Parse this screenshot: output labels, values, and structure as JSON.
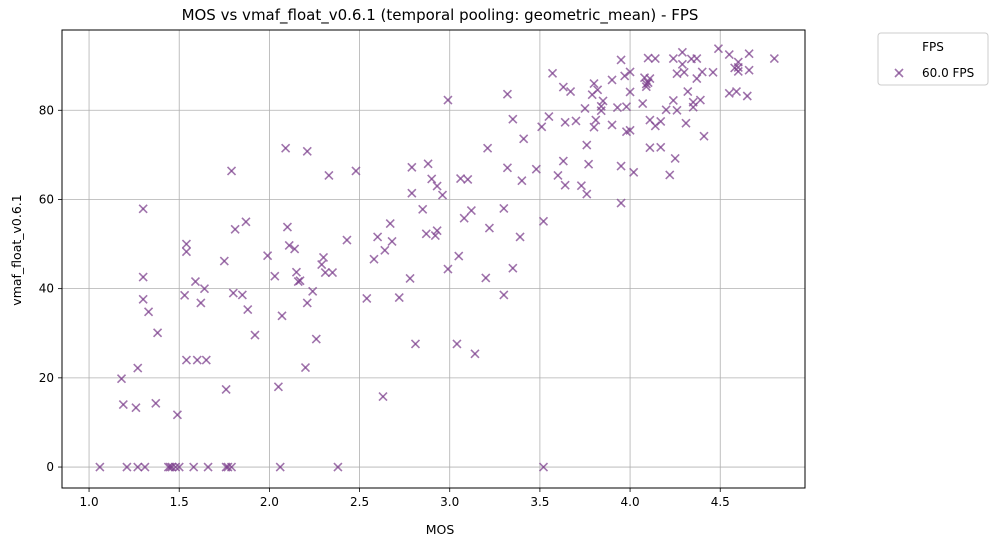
{
  "chart_data": {
    "type": "scatter",
    "title": "MOS vs vmaf_float_v0.6.1 (temporal pooling: geometric_mean) - FPS",
    "xlabel": "MOS",
    "ylabel": "vmaf_float_v0.6.1",
    "xlim": [
      0.85,
      4.97
    ],
    "ylim": [
      -4.7,
      98
    ],
    "x_ticks": [
      "1.0",
      "1.5",
      "2.0",
      "2.5",
      "3.0",
      "3.5",
      "4.0",
      "4.5"
    ],
    "y_ticks": [
      "0",
      "20",
      "40",
      "60",
      "80"
    ],
    "grid": true,
    "legend": {
      "title": "FPS",
      "placement": "outside-top-right"
    },
    "series": [
      {
        "name": "60.0 FPS",
        "marker": "x",
        "color": "#7b3f8c",
        "points": [
          [
            1.06,
            0
          ],
          [
            1.21,
            0
          ],
          [
            1.27,
            0
          ],
          [
            1.31,
            0
          ],
          [
            1.44,
            0
          ],
          [
            1.45,
            0
          ],
          [
            1.46,
            0
          ],
          [
            1.48,
            0
          ],
          [
            1.5,
            0
          ],
          [
            1.58,
            0
          ],
          [
            1.66,
            0
          ],
          [
            1.76,
            0
          ],
          [
            1.77,
            0
          ],
          [
            1.79,
            0
          ],
          [
            2.06,
            0
          ],
          [
            2.38,
            0
          ],
          [
            3.52,
            0
          ],
          [
            1.18,
            19.8
          ],
          [
            1.19,
            14
          ],
          [
            1.26,
            13.3
          ],
          [
            1.27,
            22.2
          ],
          [
            1.3,
            57.9
          ],
          [
            1.3,
            42.6
          ],
          [
            1.3,
            37.6
          ],
          [
            1.33,
            34.8
          ],
          [
            1.37,
            14.3
          ],
          [
            1.38,
            30.1
          ],
          [
            1.49,
            11.7
          ],
          [
            1.53,
            38.5
          ],
          [
            1.54,
            24
          ],
          [
            1.54,
            50
          ],
          [
            1.54,
            48.3
          ],
          [
            1.59,
            41.6
          ],
          [
            1.6,
            24
          ],
          [
            1.62,
            36.8
          ],
          [
            1.64,
            40
          ],
          [
            1.65,
            24
          ],
          [
            1.75,
            46.2
          ],
          [
            1.76,
            17.4
          ],
          [
            1.79,
            66.4
          ],
          [
            1.8,
            39
          ],
          [
            1.81,
            53.3
          ],
          [
            1.85,
            38.6
          ],
          [
            1.87,
            55
          ],
          [
            1.88,
            35.3
          ],
          [
            1.92,
            29.6
          ],
          [
            1.99,
            47.4
          ],
          [
            2.03,
            42.8
          ],
          [
            2.05,
            18
          ],
          [
            2.07,
            33.9
          ],
          [
            2.09,
            71.5
          ],
          [
            2.1,
            53.8
          ],
          [
            2.11,
            49.7
          ],
          [
            2.14,
            48.9
          ],
          [
            2.15,
            43.7
          ],
          [
            2.16,
            41.6
          ],
          [
            2.17,
            41.8
          ],
          [
            2.21,
            70.8
          ],
          [
            2.21,
            36.8
          ],
          [
            2.2,
            22.3
          ],
          [
            2.24,
            39.4
          ],
          [
            2.26,
            28.7
          ],
          [
            2.29,
            45.4
          ],
          [
            2.3,
            47
          ],
          [
            2.31,
            43.6
          ],
          [
            2.33,
            65.4
          ],
          [
            2.35,
            43.6
          ],
          [
            2.43,
            50.9
          ],
          [
            2.48,
            66.4
          ],
          [
            2.54,
            37.8
          ],
          [
            2.58,
            46.6
          ],
          [
            2.6,
            51.6
          ],
          [
            2.63,
            15.8
          ],
          [
            2.64,
            48.6
          ],
          [
            2.68,
            50.6
          ],
          [
            2.67,
            54.6
          ],
          [
            2.72,
            38
          ],
          [
            2.78,
            42.3
          ],
          [
            2.79,
            67.2
          ],
          [
            2.79,
            61.4
          ],
          [
            2.81,
            27.6
          ],
          [
            2.85,
            57.8
          ],
          [
            2.87,
            52.3
          ],
          [
            2.88,
            68
          ],
          [
            2.9,
            64.6
          ],
          [
            2.92,
            51.9
          ],
          [
            2.93,
            63
          ],
          [
            2.93,
            53
          ],
          [
            2.96,
            61
          ],
          [
            2.99,
            82.3
          ],
          [
            2.99,
            44.4
          ],
          [
            3.04,
            27.6
          ],
          [
            3.05,
            47.3
          ],
          [
            3.06,
            64.7
          ],
          [
            3.08,
            55.8
          ],
          [
            3.1,
            64.5
          ],
          [
            3.12,
            57.5
          ],
          [
            3.14,
            25.4
          ],
          [
            3.2,
            42.4
          ],
          [
            3.21,
            71.5
          ],
          [
            3.22,
            53.6
          ],
          [
            3.3,
            38.6
          ],
          [
            3.3,
            58
          ],
          [
            3.32,
            83.6
          ],
          [
            3.32,
            67.1
          ],
          [
            3.35,
            44.6
          ],
          [
            3.35,
            78
          ],
          [
            3.39,
            51.6
          ],
          [
            3.4,
            64.2
          ],
          [
            3.41,
            73.6
          ],
          [
            3.48,
            66.8
          ],
          [
            3.51,
            76.3
          ],
          [
            3.52,
            55.1
          ],
          [
            3.55,
            78.6
          ],
          [
            3.57,
            88.3
          ],
          [
            3.6,
            65.4
          ],
          [
            3.63,
            68.6
          ],
          [
            3.63,
            85.2
          ],
          [
            3.64,
            63.2
          ],
          [
            3.64,
            77.3
          ],
          [
            3.67,
            84.2
          ],
          [
            3.7,
            77.6
          ],
          [
            3.73,
            63.1
          ],
          [
            3.75,
            80.4
          ],
          [
            3.76,
            61.2
          ],
          [
            3.76,
            72.2
          ],
          [
            3.77,
            67.9
          ],
          [
            3.79,
            83.5
          ],
          [
            3.8,
            86
          ],
          [
            3.8,
            76.2
          ],
          [
            3.81,
            77.8
          ],
          [
            3.82,
            84.6
          ],
          [
            3.84,
            80.9
          ],
          [
            3.84,
            79.9
          ],
          [
            3.85,
            82.1
          ],
          [
            3.9,
            86.8
          ],
          [
            3.9,
            76.7
          ],
          [
            3.93,
            80.6
          ],
          [
            3.95,
            91.3
          ],
          [
            3.95,
            67.5
          ],
          [
            3.95,
            59.2
          ],
          [
            3.97,
            87.7
          ],
          [
            3.98,
            75.2
          ],
          [
            3.98,
            80.8
          ],
          [
            4.0,
            88.6
          ],
          [
            4.0,
            84.1
          ],
          [
            4.0,
            75.5
          ],
          [
            4.02,
            66.1
          ],
          [
            4.07,
            81.5
          ],
          [
            4.08,
            87.3
          ],
          [
            4.09,
            85.3
          ],
          [
            4.09,
            85.9
          ],
          [
            4.1,
            91.7
          ],
          [
            4.1,
            86.2
          ],
          [
            4.11,
            87.1
          ],
          [
            4.11,
            71.6
          ],
          [
            4.11,
            77.8
          ],
          [
            4.14,
            91.6
          ],
          [
            4.14,
            76.5
          ],
          [
            4.17,
            77.5
          ],
          [
            4.17,
            71.7
          ],
          [
            4.2,
            80.1
          ],
          [
            4.22,
            65.5
          ],
          [
            4.24,
            82.2
          ],
          [
            4.24,
            91.6
          ],
          [
            4.25,
            69.2
          ],
          [
            4.26,
            88.2
          ],
          [
            4.26,
            80
          ],
          [
            4.29,
            90.3
          ],
          [
            4.29,
            93
          ],
          [
            4.3,
            88.5
          ],
          [
            4.31,
            77.1
          ],
          [
            4.32,
            84.2
          ],
          [
            4.34,
            91.5
          ],
          [
            4.35,
            80.7
          ],
          [
            4.35,
            81.8
          ],
          [
            4.37,
            91.6
          ],
          [
            4.37,
            87.1
          ],
          [
            4.39,
            82.3
          ],
          [
            4.4,
            88.6
          ],
          [
            4.41,
            74.2
          ],
          [
            4.46,
            88.5
          ],
          [
            4.49,
            93.8
          ],
          [
            4.55,
            92.5
          ],
          [
            4.55,
            83.8
          ],
          [
            4.58,
            89.5
          ],
          [
            4.59,
            84.2
          ],
          [
            4.6,
            88.7
          ],
          [
            4.6,
            90.8
          ],
          [
            4.6,
            89.6
          ],
          [
            4.65,
            83.2
          ],
          [
            4.66,
            92.7
          ],
          [
            4.66,
            89
          ],
          [
            4.8,
            91.6
          ]
        ]
      }
    ]
  }
}
